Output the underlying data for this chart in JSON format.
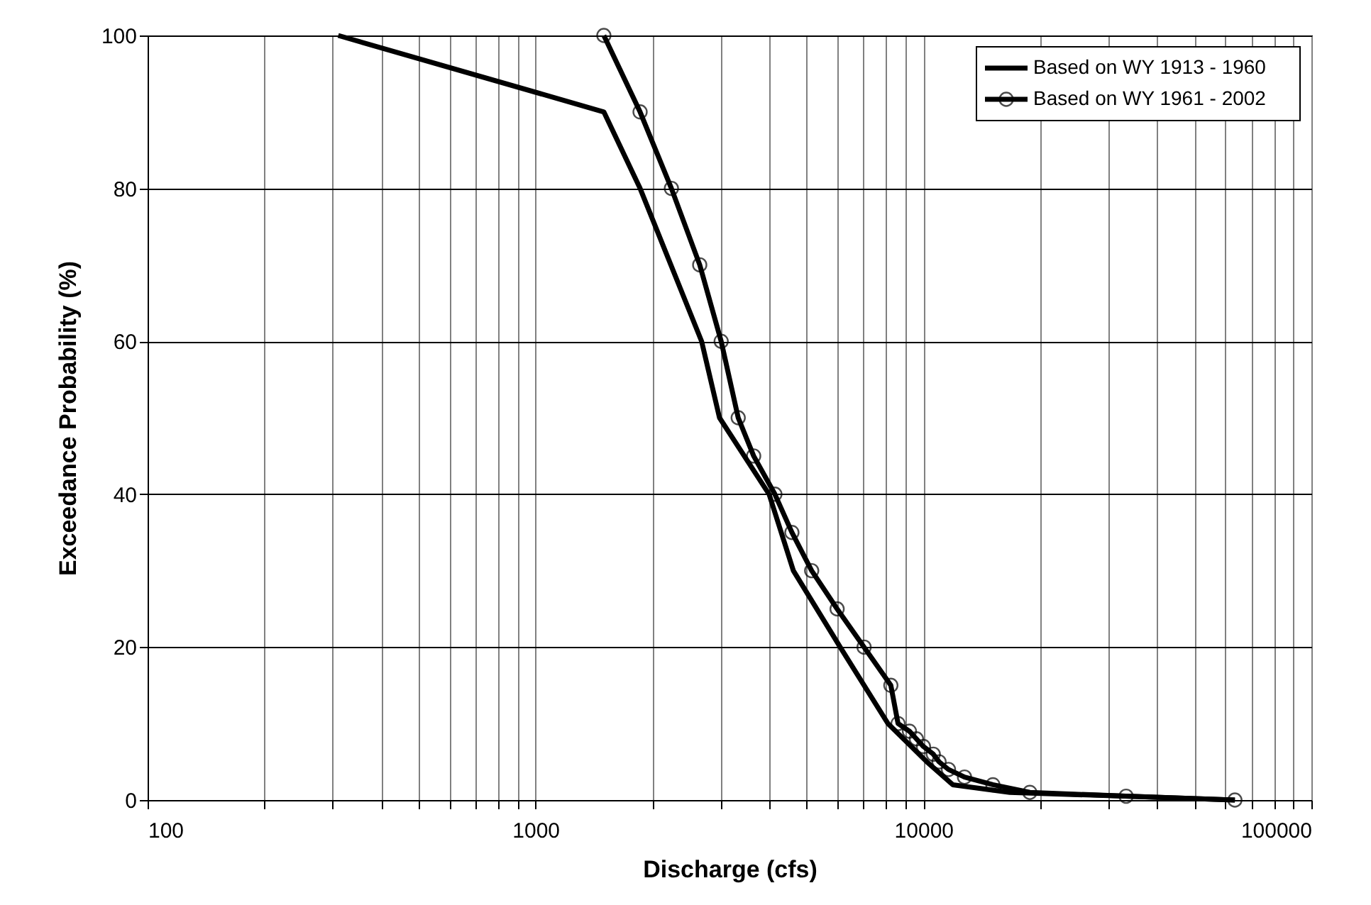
{
  "chart_data": {
    "type": "line",
    "xlabel": "Discharge (cfs)",
    "ylabel": "Exceedance Probability (%)",
    "log": "x",
    "grid": true,
    "legend": "top right",
    "line_style": "solid",
    "xlim": [
      100,
      100000
    ],
    "ylim": [
      0,
      100
    ],
    "xticks": [
      100,
      {
        "value": 200,
        "label": null
      },
      {
        "value": 300,
        "label": null
      },
      {
        "value": 400,
        "label": null
      },
      {
        "value": 500,
        "label": null
      },
      {
        "value": 600,
        "label": null
      },
      {
        "value": 700,
        "label": null
      },
      {
        "value": 800,
        "label": null
      },
      {
        "value": 900,
        "label": null
      },
      1000,
      {
        "value": 2000,
        "label": null
      },
      {
        "value": 3000,
        "label": null
      },
      {
        "value": 4000,
        "label": null
      },
      {
        "value": 5000,
        "label": null
      },
      {
        "value": 6000,
        "label": null
      },
      {
        "value": 7000,
        "label": null
      },
      {
        "value": 8000,
        "label": null
      },
      {
        "value": 9000,
        "label": null
      },
      10000,
      {
        "value": 20000,
        "label": null
      },
      {
        "value": 30000,
        "label": null
      },
      {
        "value": 40000,
        "label": null
      },
      {
        "value": 50000,
        "label": null
      },
      {
        "value": 60000,
        "label": null
      },
      {
        "value": 70000,
        "label": null
      },
      {
        "value": 80000,
        "label": null
      },
      {
        "value": 90000,
        "label": null
      },
      100000
    ],
    "yticks": [
      0,
      20,
      40,
      60,
      80,
      100
    ],
    "series": [
      {
        "name": "Based on WY 1913 - 1960",
        "color": "#000000",
        "marker": "none",
        "x": [
          310,
          1500,
          1860,
          2680,
          2980,
          4000,
          4620,
          6100,
          8100,
          10200,
          11900,
          16700,
          33000,
          63500
        ],
        "values": [
          100,
          90,
          80,
          60,
          50,
          40,
          30,
          20,
          10,
          5,
          2,
          1,
          0.5,
          0
        ]
      },
      {
        "name": "Based on WY 1961 - 2002",
        "color": "#000000",
        "marker": "circle",
        "x": [
          1500,
          1860,
          2240,
          2650,
          3010,
          3330,
          3650,
          4140,
          4580,
          5150,
          5990,
          7030,
          8240,
          8600,
          9200,
          9590,
          10000,
          10600,
          10970,
          11600,
          12760,
          15100,
          18800,
          33300,
          63500
        ],
        "values": [
          100,
          90,
          80,
          70,
          60,
          50,
          45,
          40,
          35,
          30,
          25,
          20,
          15,
          10,
          9,
          8,
          7,
          6,
          5,
          4,
          3,
          2,
          1,
          0.5,
          0
        ]
      }
    ]
  }
}
